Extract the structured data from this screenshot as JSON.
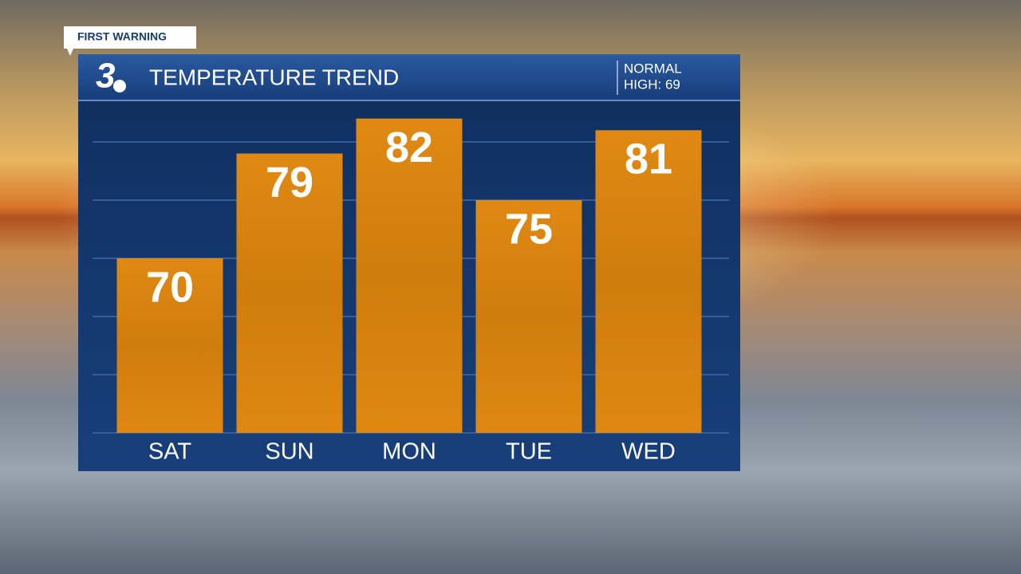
{
  "badge": "FIRST WARNING",
  "logo_text": "3",
  "normal_label": [
    "NORMAL",
    "HIGH: 69"
  ],
  "chart_data": {
    "type": "bar",
    "title": "TEMPERATURE TREND",
    "categories": [
      "SAT",
      "SUN",
      "MON",
      "TUE",
      "WED"
    ],
    "values": [
      70,
      79,
      82,
      75,
      81
    ],
    "color": "#dc8612",
    "ylim": [
      55,
      85
    ],
    "yticks": [
      55,
      60,
      65,
      70,
      75,
      80
    ],
    "grid": true
  }
}
